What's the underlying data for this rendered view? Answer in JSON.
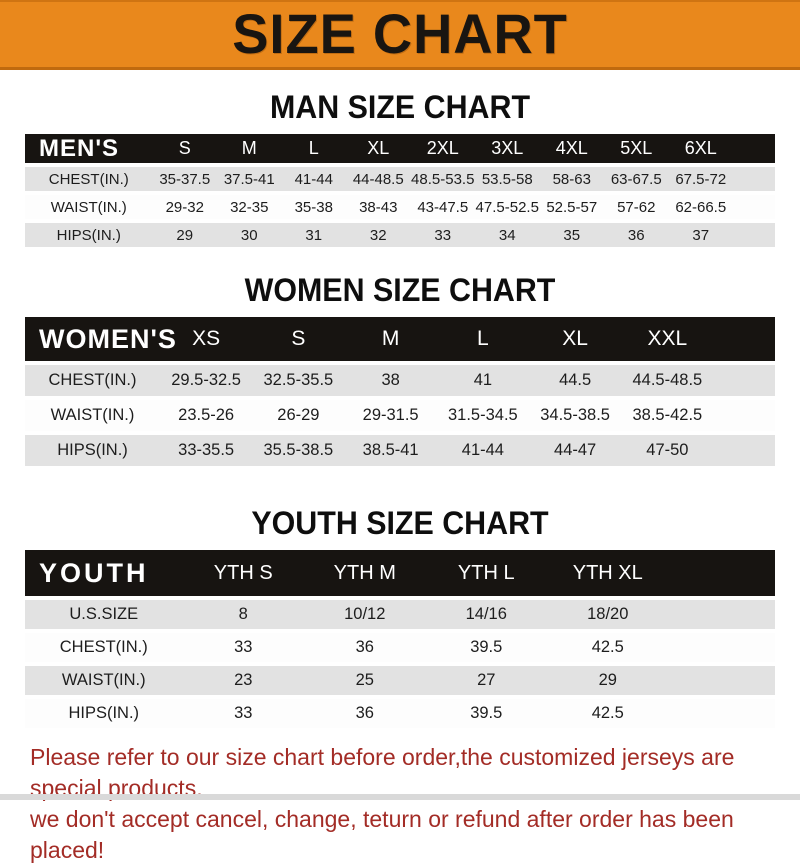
{
  "banner": {
    "title": "SIZE CHART"
  },
  "colors": {
    "banner_bg": "#E9881C",
    "banner_border": "#c06a0e",
    "table_header_bg": "#171411",
    "row_stripe_gray": "#E2E2E2",
    "notice_red": "#A32C26"
  },
  "sections": [
    {
      "title": "MAN SIZE CHART",
      "header_label": "MEN'S",
      "columns": [
        "S",
        "M",
        "L",
        "XL",
        "2XL",
        "3XL",
        "4XL",
        "5XL",
        "6XL"
      ],
      "rows": [
        {
          "label": "CHEST(IN.)",
          "values": [
            "35-37.5",
            "37.5-41",
            "41-44",
            "44-48.5",
            "48.5-53.5",
            "53.5-58",
            "58-63",
            "63-67.5",
            "67.5-72"
          ]
        },
        {
          "label": "WAIST(IN.)",
          "values": [
            "29-32",
            "32-35",
            "35-38",
            "38-43",
            "43-47.5",
            "47.5-52.5",
            "52.5-57",
            "57-62",
            "62-66.5"
          ]
        },
        {
          "label": "HIPS(IN.)",
          "values": [
            "29",
            "30",
            "31",
            "32",
            "33",
            "34",
            "35",
            "36",
            "37"
          ]
        }
      ]
    },
    {
      "title": "WOMEN SIZE CHART",
      "header_label": "WOMEN'S",
      "columns": [
        "XS",
        "S",
        "M",
        "L",
        "XL",
        "XXL"
      ],
      "rows": [
        {
          "label": "CHEST(IN.)",
          "values": [
            "29.5-32.5",
            "32.5-35.5",
            "38",
            "41",
            "44.5",
            "44.5-48.5"
          ]
        },
        {
          "label": "WAIST(IN.)",
          "values": [
            "23.5-26",
            "26-29",
            "29-31.5",
            "31.5-34.5",
            "34.5-38.5",
            "38.5-42.5"
          ]
        },
        {
          "label": "HIPS(IN.)",
          "values": [
            "33-35.5",
            "35.5-38.5",
            "38.5-41",
            "41-44",
            "44-47",
            "47-50"
          ]
        }
      ]
    },
    {
      "title": "YOUTH SIZE CHART",
      "header_label": "YOUTH",
      "columns": [
        "YTH S",
        "YTH M",
        "YTH L",
        "YTH XL"
      ],
      "rows": [
        {
          "label": "U.S.SIZE",
          "values": [
            "8",
            "10/12",
            "14/16",
            "18/20"
          ]
        },
        {
          "label": "CHEST(IN.)",
          "values": [
            "33",
            "36",
            "39.5",
            "42.5"
          ]
        },
        {
          "label": "WAIST(IN.)",
          "values": [
            "23",
            "25",
            "27",
            "29"
          ]
        },
        {
          "label": "HIPS(IN.)",
          "values": [
            "33",
            "36",
            "39.5",
            "42.5"
          ]
        }
      ]
    }
  ],
  "footer": {
    "line1": "Please refer to our size chart before order,the customized jerseys are special products,",
    "line2": "we don't accept cancel, change, teturn or refund after order has been placed!"
  }
}
